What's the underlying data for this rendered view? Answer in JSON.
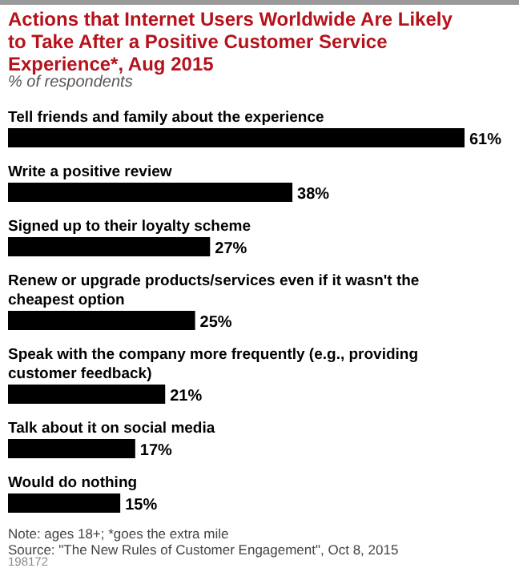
{
  "chart_data": {
    "type": "bar",
    "orientation": "horizontal",
    "title": "Actions that Internet Users Worldwide Are Likely to Take After a Positive Customer Service Experience*, Aug 2015",
    "subtitle": "% of respondents",
    "categories": [
      "Tell friends and family about the experience",
      "Write a positive review",
      "Signed up to their loyalty scheme",
      "Renew or upgrade products/services even if it wasn't the cheapest option",
      "Speak with the company more frequently (e.g., providing customer feedback)",
      "Talk about it on social media",
      "Would do nothing"
    ],
    "values": [
      61,
      38,
      27,
      25,
      21,
      17,
      15
    ],
    "value_labels": [
      "61%",
      "38%",
      "27%",
      "25%",
      "21%",
      "17%",
      "15%"
    ],
    "color": "#000000",
    "xlim": [
      0,
      61
    ],
    "tick_labels": false,
    "annotations": [
      "Note: ages 18+; *goes the extra mile",
      "Source: \"The New Rules of Customer Engagement\", Oct 8, 2015",
      "198172"
    ]
  }
}
